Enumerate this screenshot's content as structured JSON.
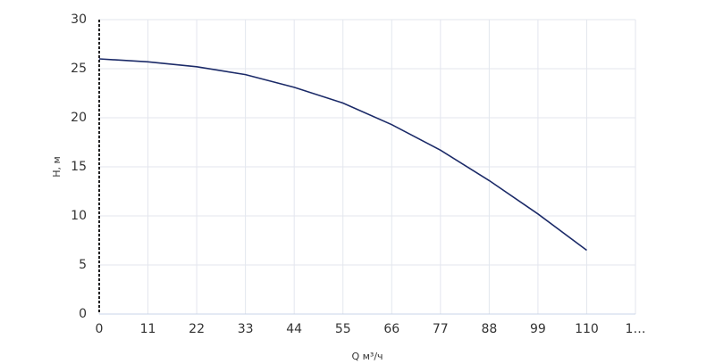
{
  "chart_data": {
    "type": "line",
    "xlabel": "Q м³/ч",
    "ylabel": "H, м",
    "x": [
      0,
      11,
      22,
      33,
      44,
      55,
      66,
      77,
      88,
      99,
      110
    ],
    "series": [
      {
        "color": "#1b2a68",
        "values": [
          26,
          25.7,
          25.2,
          24.4,
          23.1,
          21.5,
          19.3,
          16.7,
          13.6,
          10.2,
          6.5
        ]
      }
    ],
    "xlim": [
      0,
      121
    ],
    "xticks": [
      0,
      11,
      22,
      33,
      44,
      55,
      66,
      77,
      88,
      99,
      110,
      {
        "value": 121,
        "label": "1…"
      }
    ],
    "ylim": [
      0,
      30
    ],
    "yticks": [
      0,
      5,
      10,
      15,
      20,
      25,
      30
    ],
    "grid": true
  }
}
